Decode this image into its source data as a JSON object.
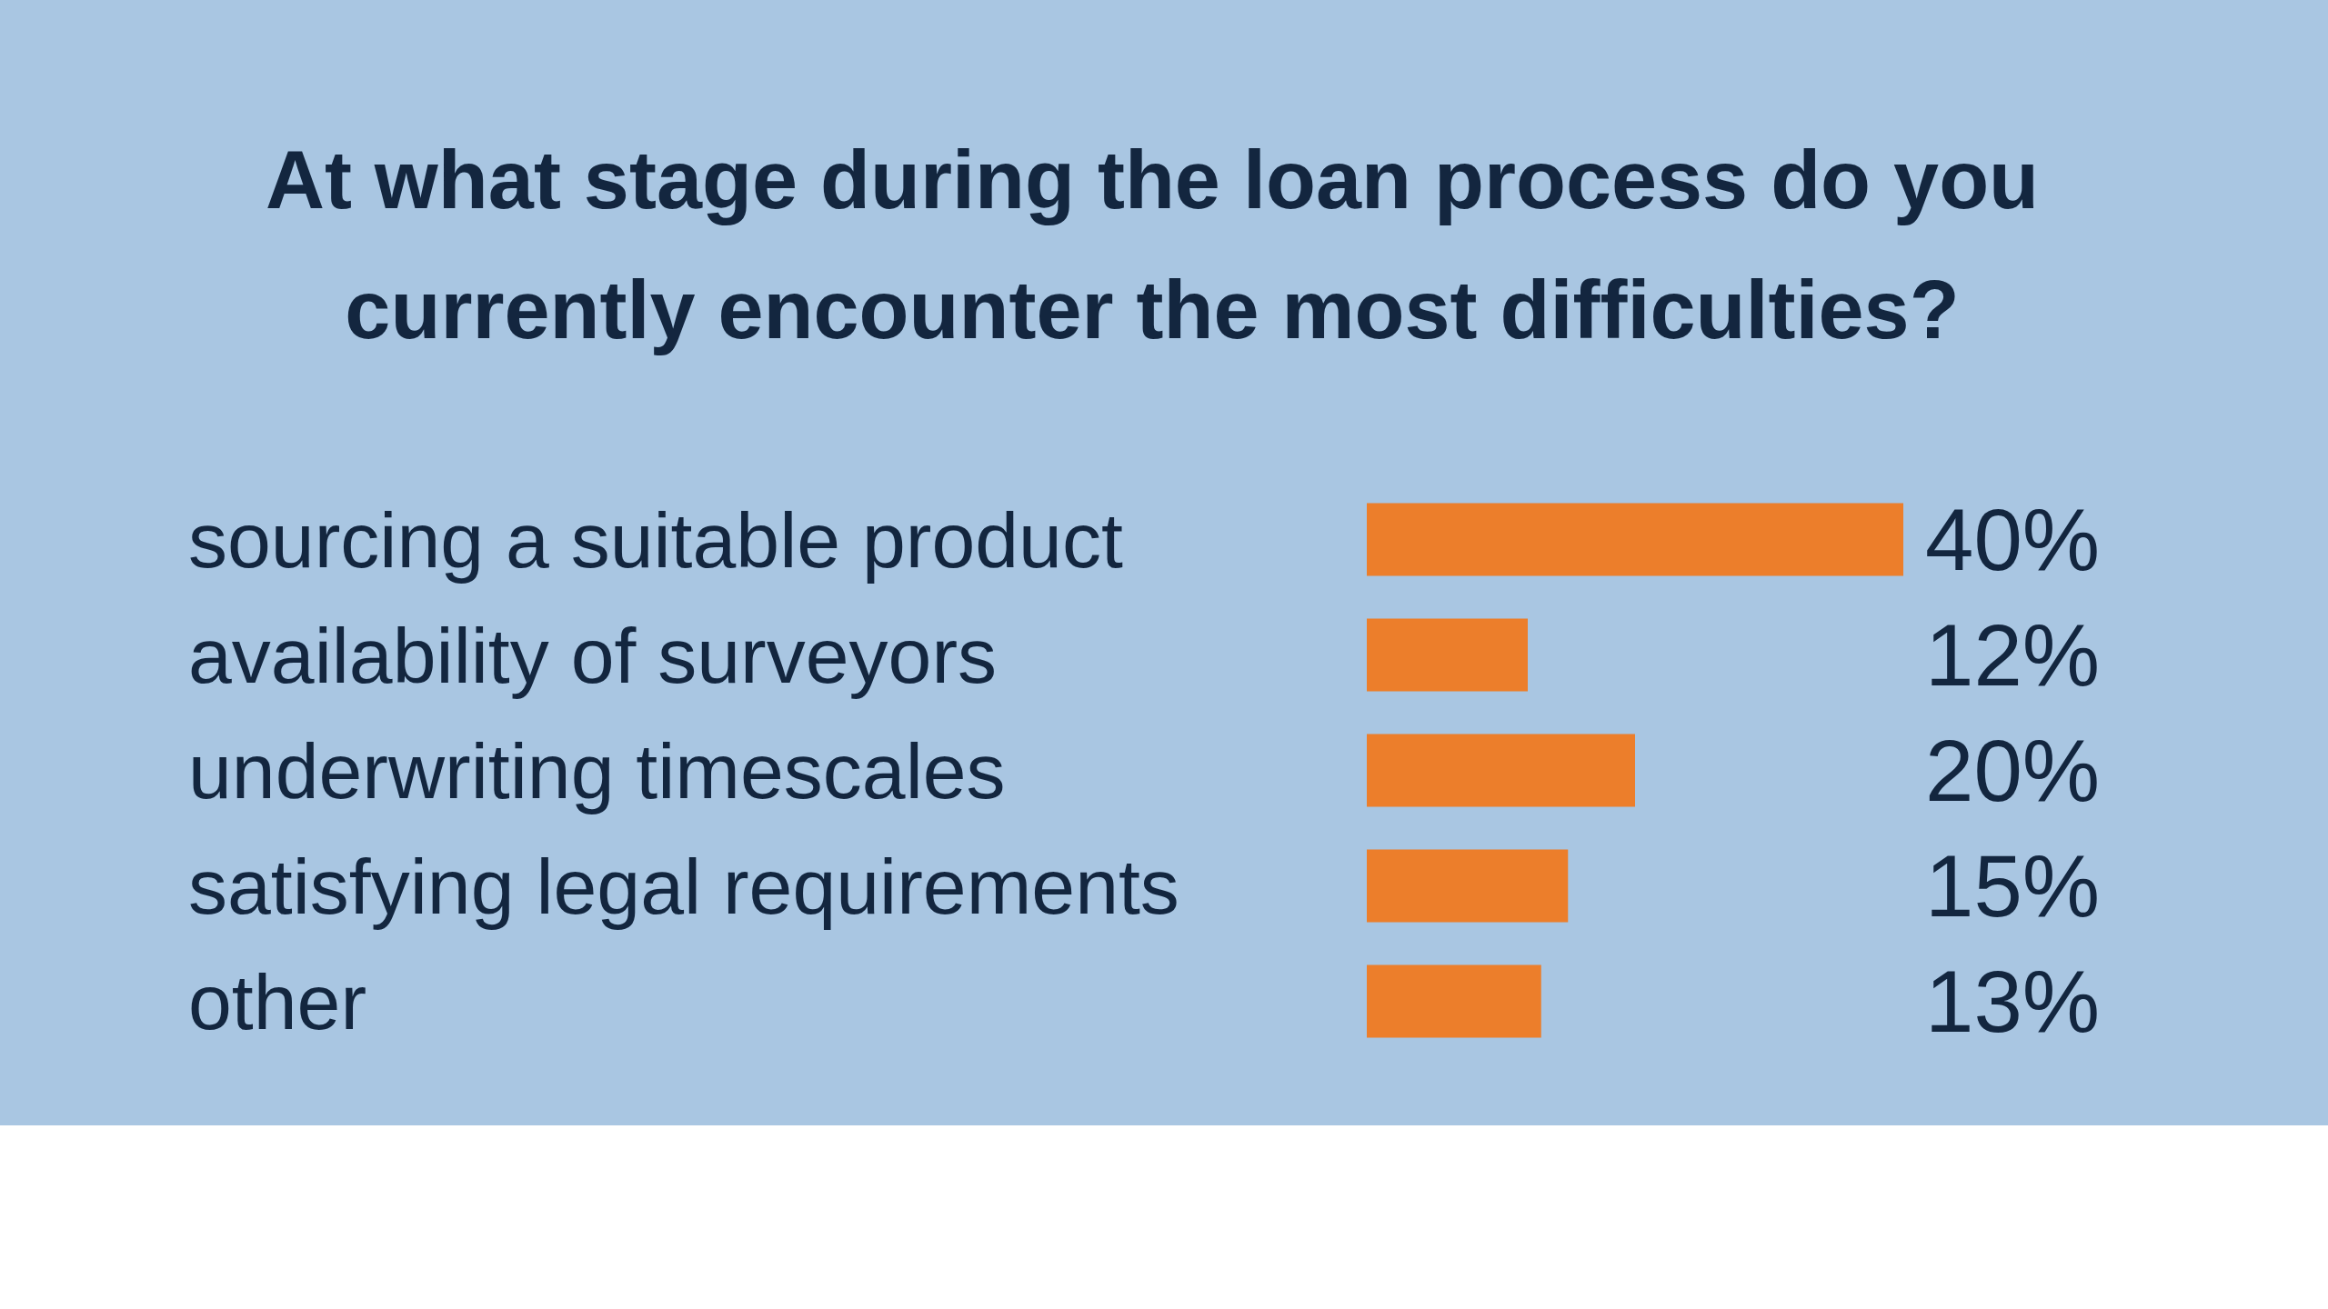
{
  "chart_data": {
    "type": "bar",
    "orientation": "horizontal",
    "title": "At what stage during the loan process do you currently encounter the most difficulties?",
    "categories": [
      "sourcing a suitable product",
      "availability of surveyors",
      "underwriting timescales",
      "satisfying legal requirements",
      "other"
    ],
    "values": [
      40,
      12,
      20,
      15,
      13
    ],
    "color": "#ec7e2b",
    "value_labels": [
      "40%",
      "12%",
      "20%",
      "15%",
      "13%"
    ]
  }
}
